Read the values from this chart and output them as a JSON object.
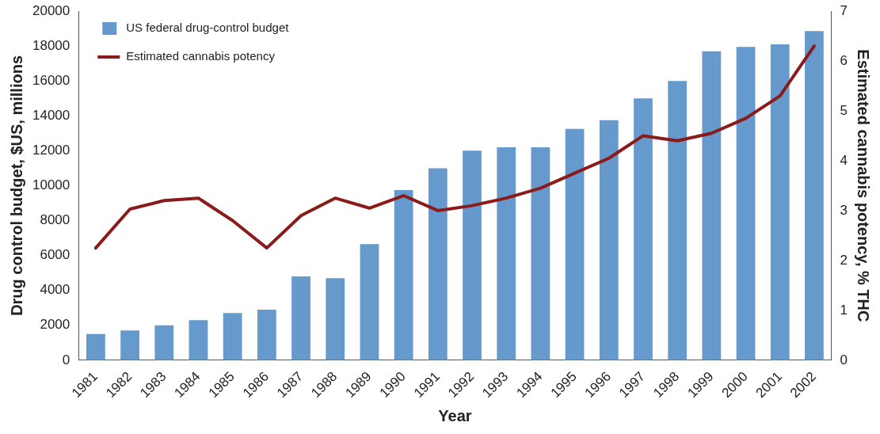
{
  "chart_data": {
    "type": "bar",
    "xlabel": "Year",
    "ylabel": "Drug control budget, $US, millions",
    "y2label": "Estimated cannabis potency, % THC",
    "categories": [
      "1981",
      "1982",
      "1983",
      "1984",
      "1985",
      "1986",
      "1987",
      "1988",
      "1989",
      "1990",
      "1991",
      "1992",
      "1993",
      "1994",
      "1995",
      "1996",
      "1997",
      "1998",
      "1999",
      "2000",
      "2001",
      "2002"
    ],
    "series": [
      {
        "name": "US federal drug-control budget",
        "color": "#6699cc",
        "values": [
          1500,
          1700,
          2000,
          2300,
          2700,
          2900,
          4800,
          4700,
          6650,
          9750,
          11000,
          12000,
          12200,
          12200,
          13250,
          13750,
          15000,
          16000,
          17700,
          17950,
          18100,
          18850
        ]
      },
      {
        "name": "Estimated cannabis potency",
        "type": "line",
        "axis": "y2",
        "color": "#8b1a1a",
        "values": [
          2.25,
          3.03,
          3.2,
          3.25,
          2.8,
          2.25,
          2.9,
          3.25,
          3.05,
          3.3,
          3.0,
          3.1,
          3.25,
          3.45,
          3.75,
          4.05,
          4.5,
          4.4,
          4.55,
          4.85,
          5.3,
          6.3
        ]
      }
    ],
    "ylim": [
      0,
      20000
    ],
    "yticks": [
      0,
      2000,
      4000,
      6000,
      8000,
      10000,
      12000,
      14000,
      16000,
      18000,
      20000
    ],
    "y2lim": [
      0,
      7
    ],
    "y2ticks": [
      0,
      1,
      2,
      3,
      4,
      5,
      6,
      7
    ],
    "grid": false,
    "legend": "top left",
    "marker": "none"
  }
}
